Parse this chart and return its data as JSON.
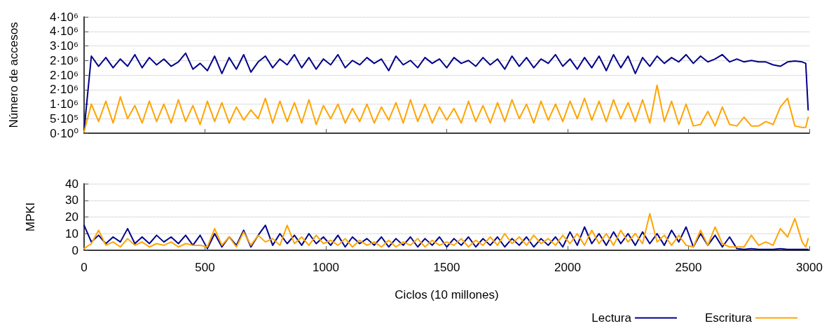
{
  "chart_data": [
    {
      "type": "line",
      "ylabel": "Número de accesos",
      "xlim": [
        0,
        3000
      ],
      "xticks": [
        0,
        500,
        1000,
        1500,
        2000,
        2500,
        3000
      ],
      "ylim": [
        0,
        4000000
      ],
      "yticks": [
        {
          "value": 0,
          "label": "0·10⁰"
        },
        {
          "value": 500000,
          "label": "5·10⁵"
        },
        {
          "value": 1000000,
          "label": "1·10⁶"
        },
        {
          "value": 1500000,
          "label": "2·10⁶"
        },
        {
          "value": 2000000,
          "label": "2·10⁶"
        },
        {
          "value": 2500000,
          "label": "2·10⁶"
        },
        {
          "value": 3000000,
          "label": "3·10⁶"
        },
        {
          "value": 3500000,
          "label": "4·10⁶"
        },
        {
          "value": 4000000,
          "label": "4·10⁶"
        }
      ],
      "tick_labels": "y",
      "grid": "y",
      "marker": "none",
      "line_style": "solid",
      "x": [
        0,
        30,
        60,
        90,
        120,
        150,
        180,
        210,
        240,
        270,
        300,
        330,
        360,
        390,
        420,
        450,
        480,
        510,
        540,
        570,
        600,
        630,
        660,
        690,
        720,
        750,
        780,
        810,
        840,
        870,
        900,
        930,
        960,
        990,
        1020,
        1050,
        1080,
        1110,
        1140,
        1170,
        1200,
        1230,
        1260,
        1290,
        1320,
        1350,
        1380,
        1410,
        1440,
        1470,
        1500,
        1530,
        1560,
        1590,
        1620,
        1650,
        1680,
        1710,
        1740,
        1770,
        1800,
        1830,
        1860,
        1890,
        1920,
        1950,
        1980,
        2010,
        2040,
        2070,
        2100,
        2130,
        2160,
        2190,
        2220,
        2250,
        2280,
        2310,
        2340,
        2370,
        2400,
        2430,
        2460,
        2490,
        2520,
        2550,
        2580,
        2610,
        2640,
        2670,
        2700,
        2730,
        2760,
        2790,
        2820,
        2850,
        2880,
        2910,
        2940,
        2970,
        2985,
        2995
      ],
      "series": [
        {
          "color": "#00008b",
          "values": [
            100000,
            2650000,
            2300000,
            2600000,
            2250000,
            2550000,
            2300000,
            2700000,
            2250000,
            2600000,
            2350000,
            2550000,
            2300000,
            2450000,
            2750000,
            2200000,
            2400000,
            2150000,
            2650000,
            2050000,
            2600000,
            2200000,
            2700000,
            2100000,
            2450000,
            2650000,
            2250000,
            2550000,
            2350000,
            2700000,
            2250000,
            2600000,
            2200000,
            2550000,
            2350000,
            2700000,
            2250000,
            2500000,
            2350000,
            2600000,
            2400000,
            2550000,
            2150000,
            2650000,
            2350000,
            2500000,
            2250000,
            2600000,
            2400000,
            2550000,
            2250000,
            2600000,
            2400000,
            2500000,
            2300000,
            2600000,
            2350000,
            2550000,
            2200000,
            2650000,
            2300000,
            2600000,
            2250000,
            2550000,
            2400000,
            2700000,
            2300000,
            2550000,
            2200000,
            2600000,
            2250000,
            2650000,
            2150000,
            2700000,
            2250000,
            2650000,
            2050000,
            2600000,
            2300000,
            2650000,
            2400000,
            2600000,
            2450000,
            2700000,
            2400000,
            2650000,
            2450000,
            2550000,
            2700000,
            2450000,
            2550000,
            2450000,
            2500000,
            2450000,
            2450000,
            2350000,
            2300000,
            2450000,
            2480000,
            2450000,
            2400000,
            800000
          ]
        },
        {
          "color": "#ffa500",
          "values": [
            50000,
            1000000,
            400000,
            1100000,
            350000,
            1250000,
            500000,
            950000,
            350000,
            1100000,
            400000,
            1000000,
            350000,
            1150000,
            400000,
            950000,
            300000,
            1100000,
            400000,
            1050000,
            350000,
            900000,
            450000,
            800000,
            500000,
            1200000,
            350000,
            1100000,
            400000,
            1050000,
            350000,
            1150000,
            300000,
            950000,
            500000,
            1000000,
            350000,
            850000,
            400000,
            1000000,
            350000,
            900000,
            450000,
            1050000,
            350000,
            1150000,
            400000,
            1000000,
            350000,
            900000,
            450000,
            850000,
            350000,
            1100000,
            400000,
            950000,
            350000,
            1050000,
            400000,
            1150000,
            500000,
            1000000,
            350000,
            1100000,
            450000,
            1000000,
            400000,
            1100000,
            500000,
            1200000,
            450000,
            1100000,
            400000,
            1150000,
            500000,
            1050000,
            400000,
            1150000,
            350000,
            1650000,
            400000,
            1100000,
            300000,
            1000000,
            250000,
            300000,
            750000,
            250000,
            900000,
            300000,
            250000,
            550000,
            250000,
            250000,
            400000,
            300000,
            900000,
            1200000,
            250000,
            200000,
            200000,
            550000
          ]
        }
      ]
    },
    {
      "type": "line",
      "xlabel": "Ciclos (10 millones)",
      "ylabel": "MPKI",
      "xlim": [
        0,
        3000
      ],
      "xticks": [
        0,
        500,
        1000,
        1500,
        2000,
        2500,
        3000
      ],
      "ylim": [
        0,
        40
      ],
      "yticks": [
        0,
        10,
        20,
        30,
        40
      ],
      "grid": "y",
      "legend": "bottom right",
      "marker": "none",
      "line_style": "solid",
      "x": [
        0,
        30,
        60,
        90,
        120,
        150,
        180,
        210,
        240,
        270,
        300,
        330,
        360,
        390,
        420,
        450,
        480,
        510,
        540,
        570,
        600,
        630,
        660,
        690,
        720,
        750,
        780,
        810,
        840,
        870,
        900,
        930,
        960,
        990,
        1020,
        1050,
        1080,
        1110,
        1140,
        1170,
        1200,
        1230,
        1260,
        1290,
        1320,
        1350,
        1380,
        1410,
        1440,
        1470,
        1500,
        1530,
        1560,
        1590,
        1620,
        1650,
        1680,
        1710,
        1740,
        1770,
        1800,
        1830,
        1860,
        1890,
        1920,
        1950,
        1980,
        2010,
        2040,
        2070,
        2100,
        2130,
        2160,
        2190,
        2220,
        2250,
        2280,
        2310,
        2340,
        2370,
        2400,
        2430,
        2460,
        2490,
        2520,
        2550,
        2580,
        2610,
        2640,
        2670,
        2700,
        2730,
        2760,
        2790,
        2820,
        2850,
        2880,
        2910,
        2940,
        2970,
        2985,
        2995
      ],
      "series": [
        {
          "name": "Lectura",
          "color": "#00008b",
          "values": [
            15,
            5,
            9,
            4,
            8,
            5,
            13,
            4,
            8,
            4,
            9,
            5,
            8,
            4,
            9,
            3,
            9,
            1,
            10,
            2,
            8,
            3,
            12,
            2,
            9,
            15,
            3,
            10,
            4,
            9,
            3,
            10,
            4,
            8,
            3,
            9,
            2,
            8,
            4,
            7,
            3,
            8,
            2,
            7,
            3,
            8,
            2,
            7,
            3,
            8,
            2,
            7,
            3,
            8,
            2,
            7,
            3,
            8,
            2,
            7,
            3,
            8,
            2,
            7,
            3,
            8,
            2,
            11,
            3,
            14,
            4,
            10,
            3,
            11,
            4,
            10,
            3,
            11,
            4,
            10,
            3,
            12,
            5,
            14,
            2,
            10,
            3,
            9,
            2,
            8,
            1,
            0.5,
            1,
            0.5,
            0.5,
            0.5,
            1,
            0.5,
            0.5,
            0.5,
            0.5,
            0.5
          ]
        },
        {
          "name": "Escritura",
          "color": "#ffa500",
          "values": [
            1,
            4,
            12,
            3,
            5,
            2,
            7,
            3,
            5,
            2,
            4,
            3,
            5,
            2,
            4,
            3,
            3,
            2,
            13,
            3,
            8,
            2,
            11,
            3,
            9,
            5,
            7,
            3,
            15,
            4,
            8,
            3,
            9,
            4,
            6,
            3,
            7,
            2,
            6,
            3,
            5,
            2,
            6,
            2,
            5,
            3,
            7,
            2,
            6,
            3,
            5,
            3,
            7,
            2,
            6,
            3,
            8,
            3,
            10,
            4,
            8,
            3,
            9,
            4,
            7,
            3,
            9,
            4,
            10,
            3,
            12,
            4,
            10,
            3,
            12,
            5,
            10,
            4,
            22,
            5,
            9,
            3,
            9,
            3,
            2,
            12,
            3,
            14,
            4,
            2,
            2,
            2,
            9,
            3,
            5,
            3,
            13,
            8,
            19,
            5,
            2,
            7
          ]
        }
      ]
    }
  ]
}
